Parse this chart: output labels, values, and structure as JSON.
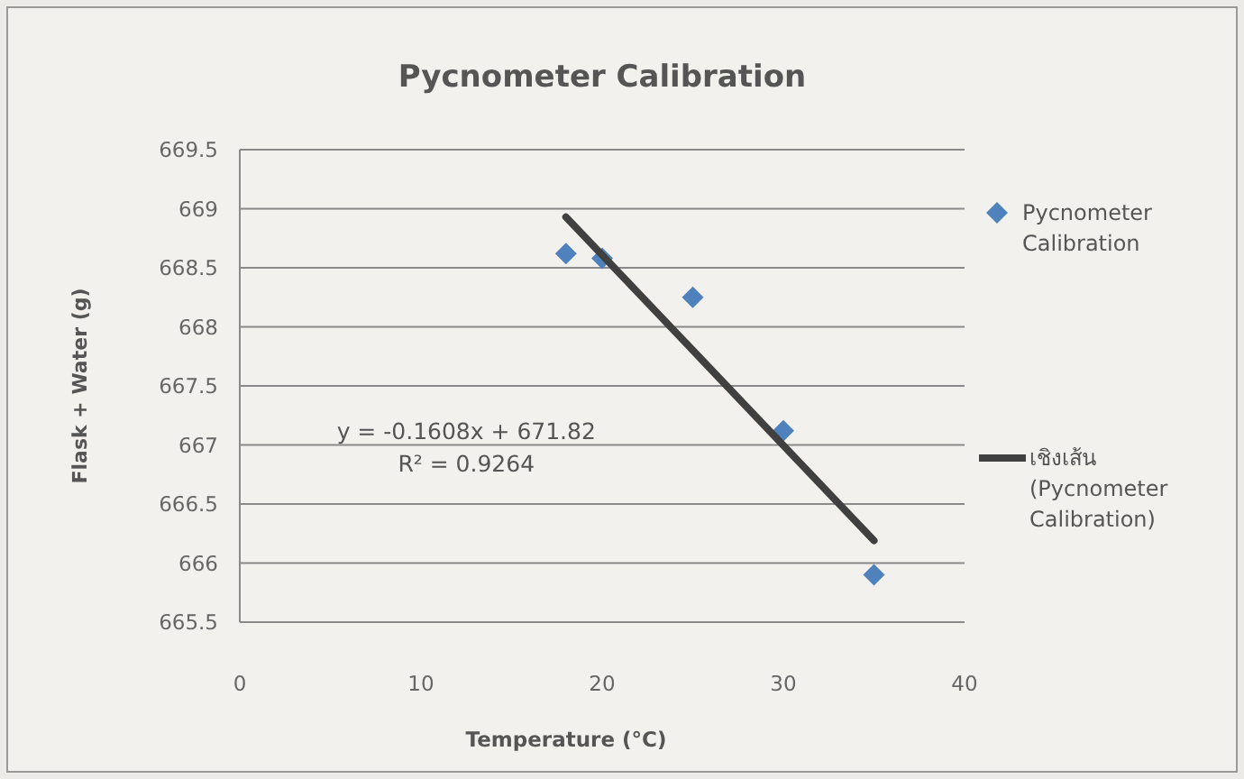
{
  "chart_data": {
    "type": "scatter",
    "title": "Pycnometer Calibration",
    "xlabel": "Temperature (°C)",
    "ylabel": "Flask + Water (g)",
    "x": [
      18,
      20,
      25,
      30,
      35
    ],
    "series": [
      {
        "name": "Pycnometer Calibration",
        "color": "#4f81bd",
        "marker": "diamond",
        "values": [
          668.62,
          668.58,
          668.25,
          667.12,
          665.9
        ]
      },
      {
        "name": "เชิงเส้น (Pycnometer Calibration)",
        "type": "line",
        "color": "#404040",
        "x": [
          18,
          35
        ],
        "values": [
          668.93,
          666.19
        ],
        "marker": "none",
        "line_style": "solid"
      }
    ],
    "xlim": [
      0,
      40
    ],
    "ylim": [
      665.5,
      669.5
    ],
    "xticks": [
      0,
      10,
      20,
      30,
      40
    ],
    "yticks": [
      665.5,
      666,
      666.5,
      667,
      667.5,
      668,
      668.5,
      669,
      669.5
    ],
    "grid": "y",
    "legend": "right",
    "annotations": [
      "y = -0.1608x + 671.82",
      "R² = 0.9264"
    ]
  }
}
